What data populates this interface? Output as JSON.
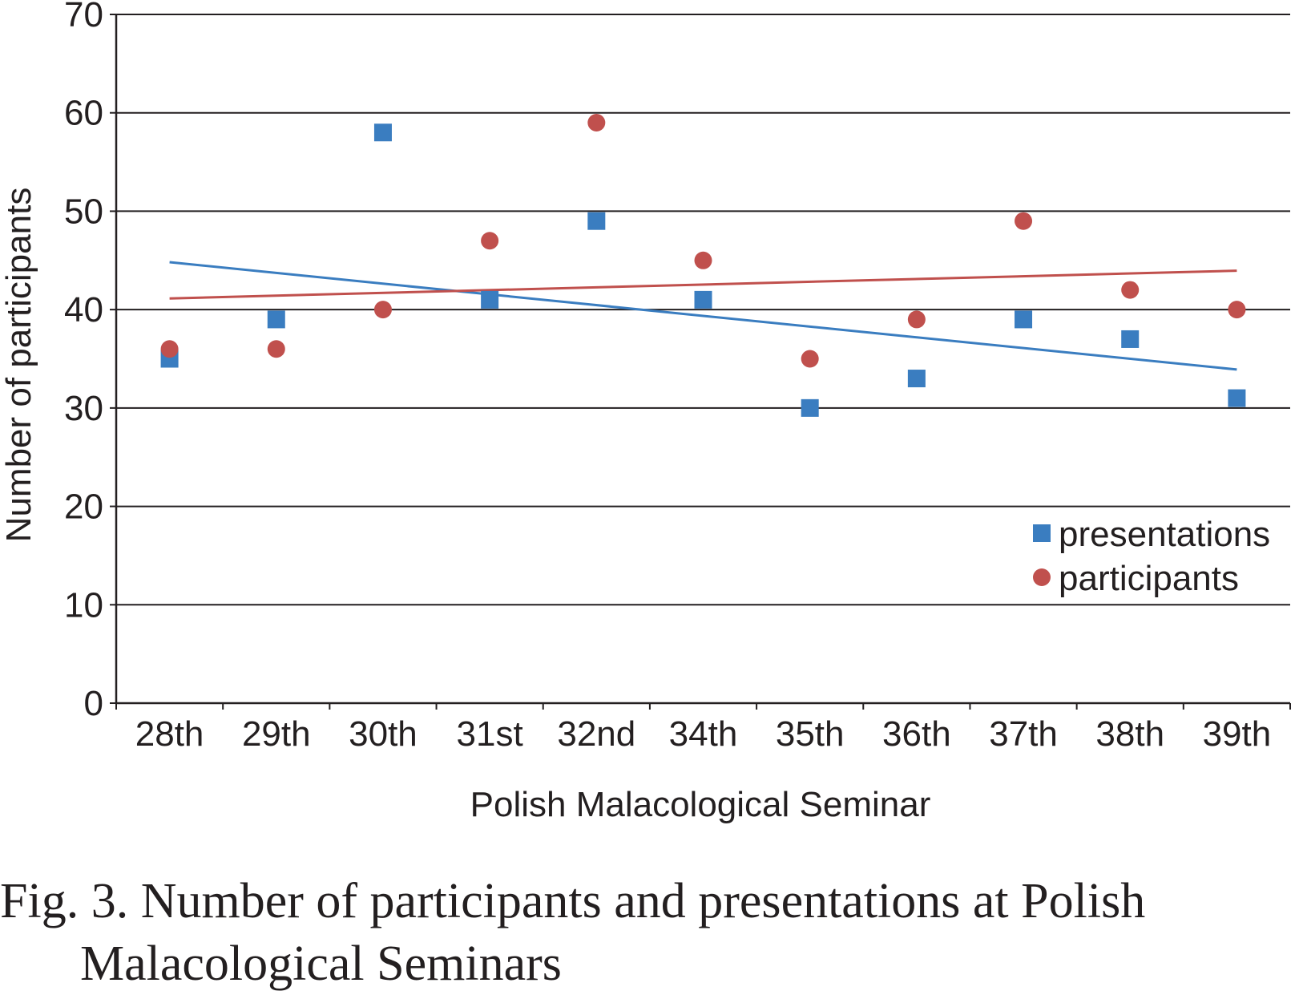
{
  "chart_data": {
    "type": "scatter",
    "categories": [
      "28th",
      "29th",
      "30th",
      "31st",
      "32nd",
      "34th",
      "35th",
      "36th",
      "37th",
      "38th",
      "39th"
    ],
    "series": [
      {
        "name": "presentations",
        "values": [
          35,
          39,
          58,
          41,
          49,
          41,
          30,
          33,
          39,
          37,
          31
        ],
        "color": "#3a7dc0",
        "marker": "square",
        "trendline": "linear"
      },
      {
        "name": "participants",
        "values": [
          36,
          36,
          40,
          47,
          59,
          45,
          35,
          39,
          49,
          42,
          40
        ],
        "color": "#c0504d",
        "marker": "circle",
        "trendline": "linear"
      }
    ],
    "xlabel": "Polish Malacological Seminar",
    "ylabel": "Number of participants",
    "ylim": [
      0,
      70
    ],
    "yticks": [
      0,
      10,
      20,
      30,
      40,
      50,
      60,
      70
    ],
    "grid": true,
    "legend": "right"
  },
  "caption": {
    "line1": "Fig. 3. Number of participants and presentations at Polish",
    "line2": "Malacological Seminars"
  }
}
